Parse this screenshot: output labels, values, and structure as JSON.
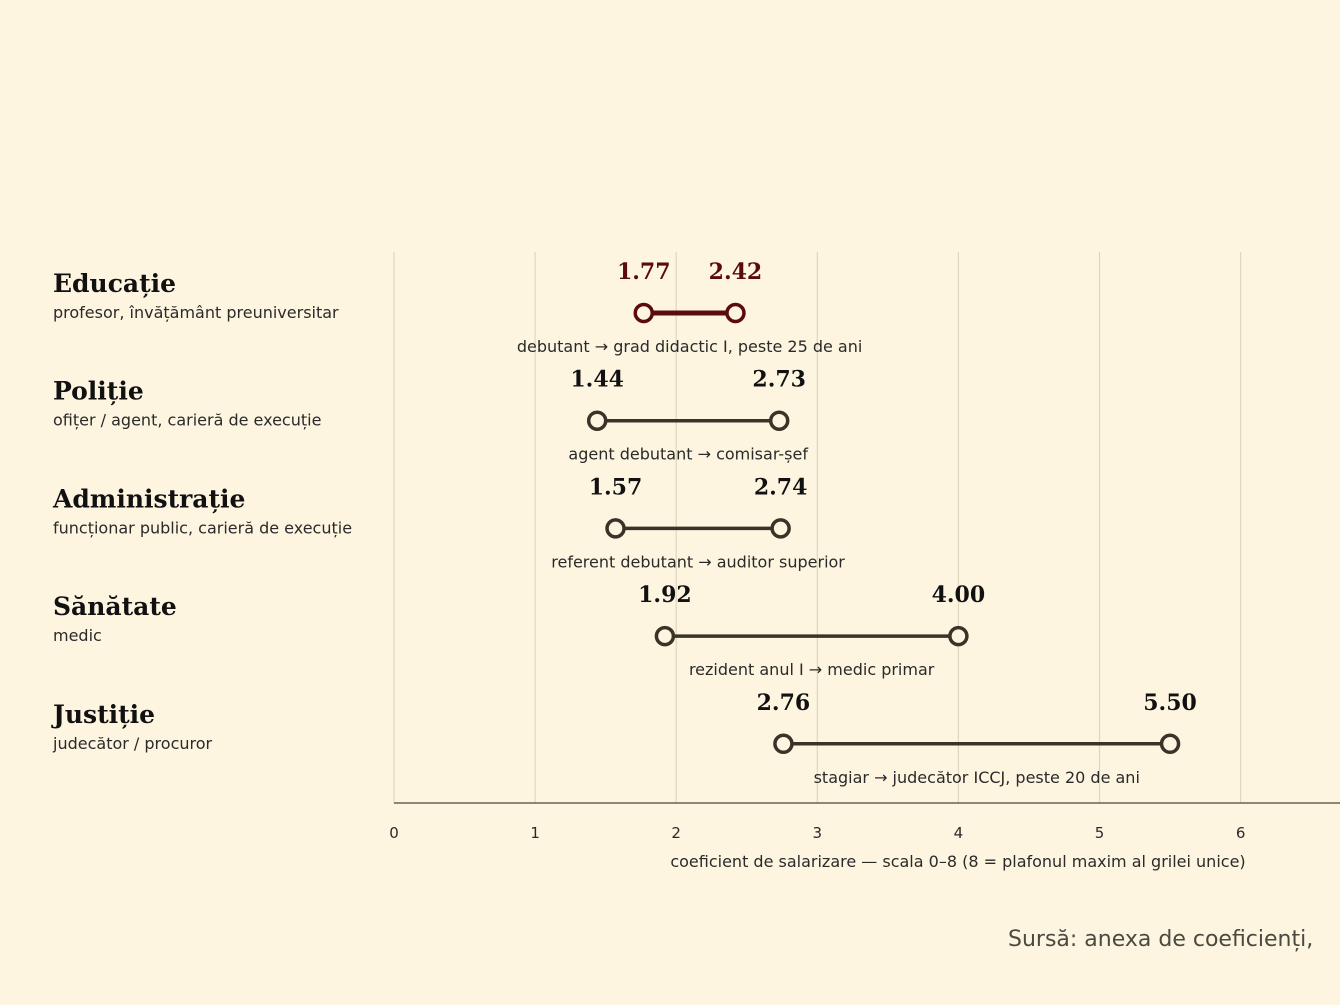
{
  "chart_data": {
    "type": "range",
    "xlabel": "coeficient de salarizare — scala 0–8 (8 = plafonul maxim al grilei unice)",
    "xlim": [
      0,
      8
    ],
    "x_ticks": [
      0,
      1,
      2,
      3,
      4,
      5,
      6
    ],
    "grid": true,
    "source": "Sursă: anexa de coeficienți,",
    "colors": {
      "highlight": "#5a0b0b",
      "default": "#3a3428",
      "background": "#fdf5e0"
    },
    "categories": [
      {
        "name": "Educație",
        "subtitle": "profesor, învățământ preuniversitar",
        "min": 1.77,
        "max": 2.42,
        "min_label": "1.77",
        "max_label": "2.42",
        "note": "debutant → grad didactic I, peste 25 de ani",
        "highlight": true
      },
      {
        "name": "Poliție",
        "subtitle": "ofițer / agent, carieră de execuție",
        "min": 1.44,
        "max": 2.73,
        "min_label": "1.44",
        "max_label": "2.73",
        "note": "agent debutant → comisar-șef",
        "highlight": false
      },
      {
        "name": "Administrație",
        "subtitle": "funcționar public, carieră de execuție",
        "min": 1.57,
        "max": 2.74,
        "min_label": "1.57",
        "max_label": "2.74",
        "note": "referent debutant → auditor superior",
        "highlight": false
      },
      {
        "name": "Sănătate",
        "subtitle": "medic",
        "min": 1.92,
        "max": 4.0,
        "min_label": "1.92",
        "max_label": "4.00",
        "note": "rezident anul I → medic primar",
        "highlight": false
      },
      {
        "name": "Justiție",
        "subtitle": "judecător / procuror",
        "min": 2.76,
        "max": 5.5,
        "min_label": "2.76",
        "max_label": "5.50",
        "note": "stagiar → judecător ICCJ, peste 20 de ani",
        "highlight": false
      }
    ]
  }
}
